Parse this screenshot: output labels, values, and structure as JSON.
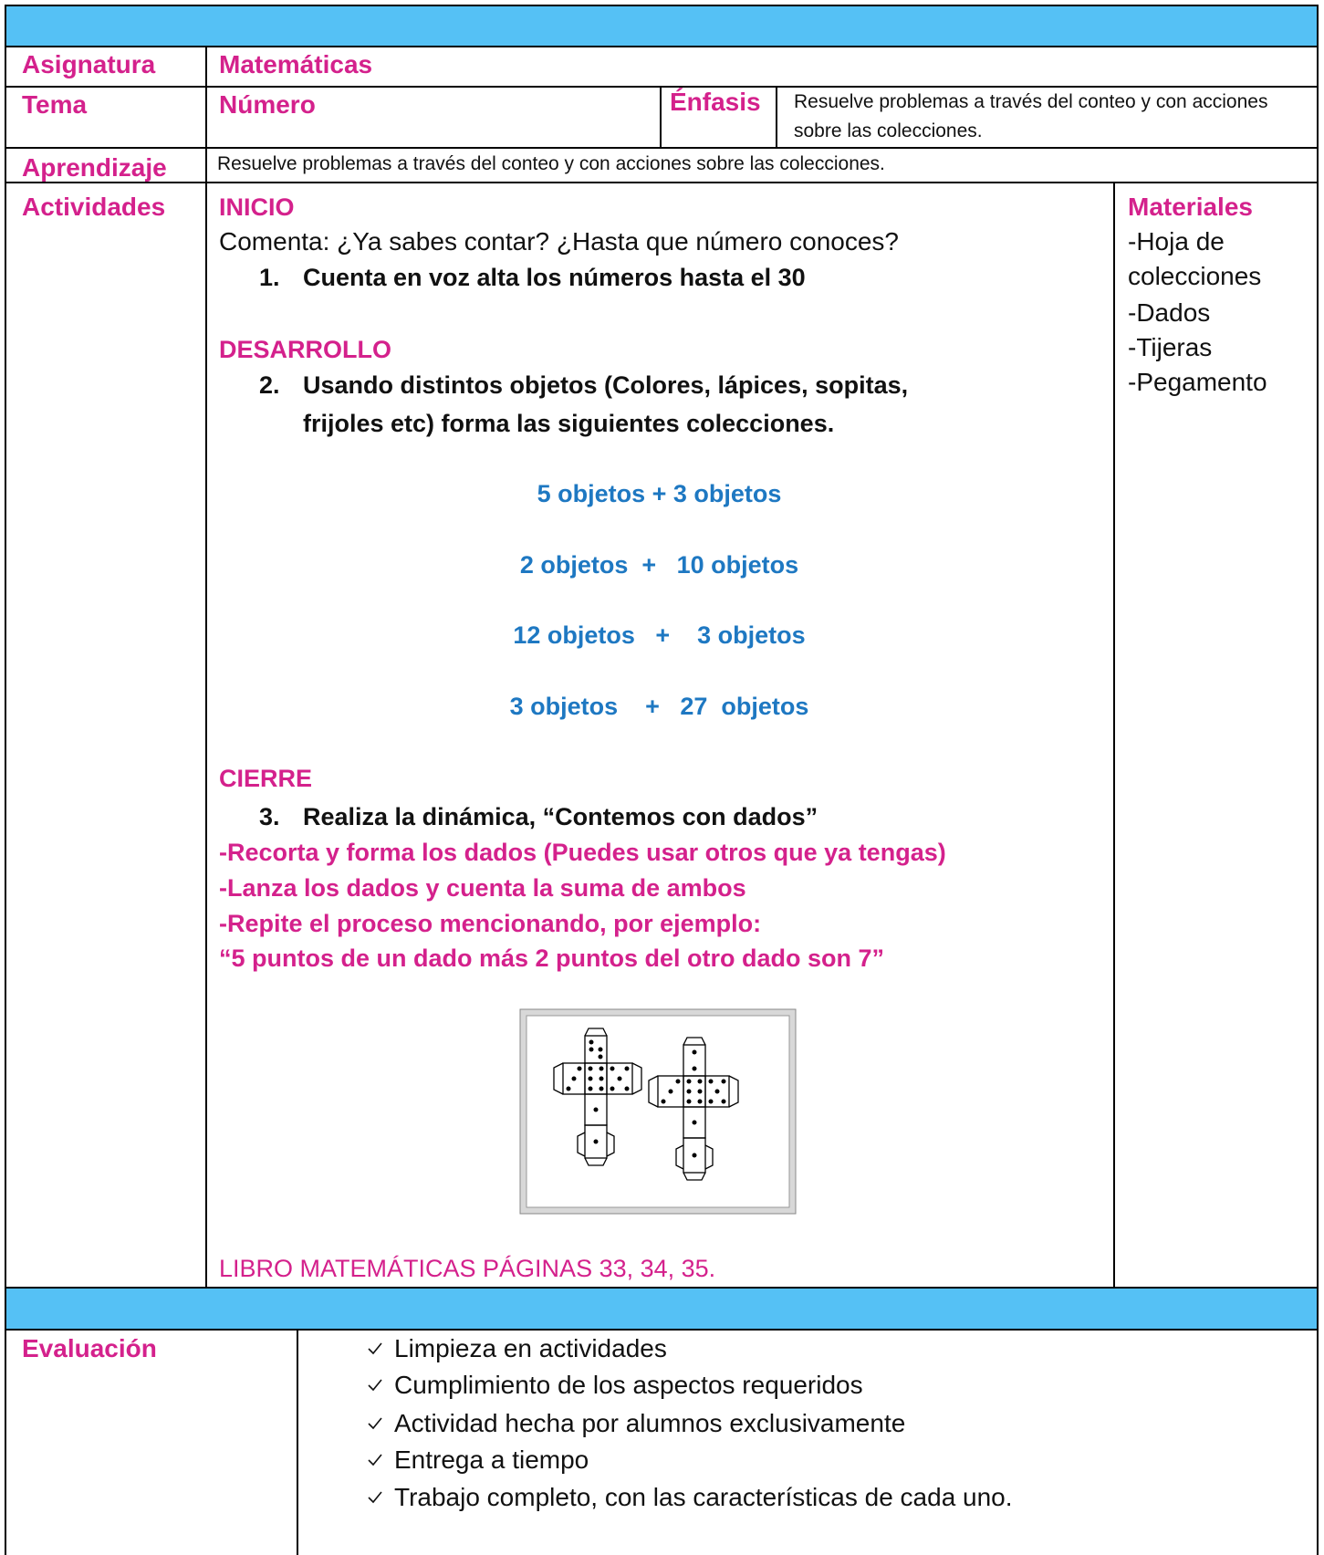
{
  "asignatura": {
    "label": "Asignatura",
    "value": "Matemáticas"
  },
  "tema": {
    "label": "Tema",
    "value": "Número",
    "enfasis_label": "Énfasis",
    "enfasis": "Resuelve problemas a través del conteo y con acciones sobre las colecciones."
  },
  "aprendizaje": {
    "label": "Aprendizaje",
    "value": "Resuelve problemas a través del conteo y con acciones sobre las colecciones."
  },
  "actividades": {
    "label": "Actividades",
    "inicio": {
      "heading": "INICIO",
      "prompt": "Comenta: ¿Ya sabes contar? ¿Hasta que número conoces?",
      "step_number": "1.",
      "step": "Cuenta en voz alta los números hasta el 30"
    },
    "desarrollo": {
      "heading": "DESARROLLO",
      "step_number": "2.",
      "step_lines": [
        "Usando distintos objetos (Colores, lápices, sopitas,",
        "frijoles etc) forma las siguientes colecciones."
      ],
      "collections": [
        "5 objetos + 3 objetos",
        "2 objetos  +   10 objetos",
        "12 objetos   +    3 objetos",
        "3 objetos    +   27  objetos"
      ]
    },
    "cierre": {
      "heading": "CIERRE",
      "step_number": "3.",
      "step": "Realiza la dinámica, “Contemos con dados”",
      "instructions": [
        "-Recorta y forma los dados (Puedes usar otros que ya tengas)",
        "-Lanza los dados y cuenta la suma de ambos",
        "-Repite el proceso mencionando, por ejemplo:",
        "“5 puntos de un dado más 2 puntos del otro dado son 7”"
      ]
    },
    "book": "LIBRO MATEMÁTICAS PÁGINAS 33, 34, 35."
  },
  "materiales": {
    "label": "Materiales",
    "items": [
      "-Hoja de colecciones",
      "-Dados",
      "-Tijeras",
      "-Pegamento"
    ]
  },
  "evaluacion": {
    "label": "Evaluación",
    "items": [
      "Limpieza en actividades",
      "Cumplimiento de los aspectos requeridos",
      "Actividad hecha por alumnos exclusivamente",
      "Entrega a tiempo",
      "Trabajo completo, con las características de cada uno."
    ]
  }
}
